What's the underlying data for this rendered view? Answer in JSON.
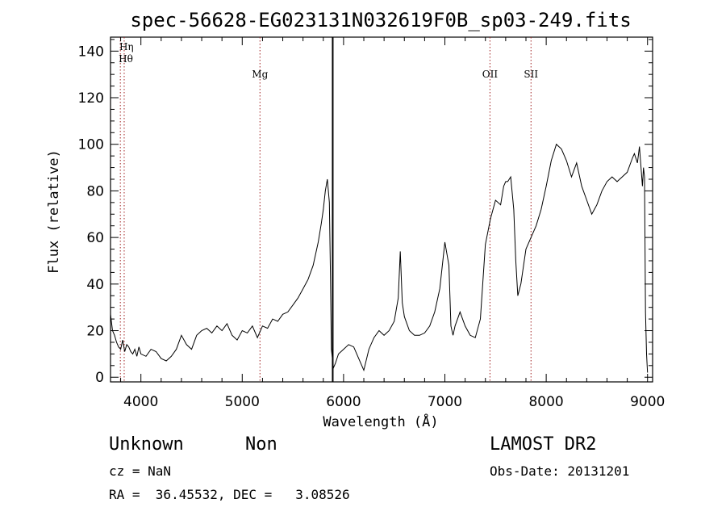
{
  "chart_data": {
    "type": "line",
    "title": "spec-56628-EG023131N032619F0B_sp03-249.fits",
    "xlabel": "Wavelength (Å)",
    "ylabel": "Flux (relative)",
    "xlim": [
      3700,
      9050
    ],
    "ylim": [
      -2,
      146
    ],
    "x_ticks": [
      4000,
      5000,
      6000,
      7000,
      8000,
      9000
    ],
    "y_ticks": [
      0,
      20,
      40,
      60,
      80,
      100,
      120,
      140
    ],
    "grid": false,
    "series": [
      {
        "x": [
          3700,
          3720,
          3740,
          3760,
          3780,
          3800,
          3820,
          3840,
          3860,
          3880,
          3900,
          3920,
          3940,
          3960,
          3980,
          4000,
          4050,
          4100,
          4150,
          4200,
          4250,
          4300,
          4350,
          4400,
          4450,
          4500,
          4550,
          4600,
          4650,
          4700,
          4750,
          4800,
          4850,
          4900,
          4950,
          5000,
          5050,
          5100,
          5150,
          5200,
          5250,
          5300,
          5350,
          5400,
          5450,
          5500,
          5550,
          5600,
          5650,
          5700,
          5750,
          5780,
          5800,
          5820,
          5840,
          5860,
          5870,
          5880,
          5890,
          5900,
          5920,
          5950,
          6000,
          6050,
          6100,
          6150,
          6200,
          6250,
          6300,
          6350,
          6400,
          6450,
          6500,
          6540,
          6560,
          6580,
          6600,
          6650,
          6700,
          6750,
          6800,
          6850,
          6900,
          6950,
          7000,
          7040,
          7060,
          7080,
          7100,
          7150,
          7200,
          7250,
          7300,
          7350,
          7400,
          7450,
          7500,
          7550,
          7580,
          7600,
          7620,
          7650,
          7680,
          7700,
          7720,
          7750,
          7800,
          7850,
          7900,
          7950,
          8000,
          8050,
          8100,
          8150,
          8200,
          8250,
          8300,
          8330,
          8350,
          8400,
          8450,
          8500,
          8550,
          8600,
          8650,
          8700,
          8750,
          8800,
          8850,
          8870,
          8900,
          8920,
          8950,
          8960,
          8970,
          8980,
          8990,
          9000
        ],
        "y": [
          27,
          20,
          18,
          15,
          13,
          12,
          16,
          11,
          14,
          13,
          11,
          10,
          12,
          9,
          13,
          10,
          9,
          12,
          11,
          8,
          7,
          9,
          12,
          18,
          14,
          12,
          18,
          20,
          21,
          19,
          22,
          20,
          23,
          18,
          16,
          20,
          19,
          22,
          17,
          22,
          21,
          25,
          24,
          27,
          28,
          31,
          34,
          38,
          42,
          48,
          58,
          66,
          72,
          80,
          85,
          75,
          45,
          12,
          8,
          4,
          6,
          10,
          12,
          14,
          13,
          8,
          3,
          12,
          17,
          20,
          18,
          20,
          24,
          34,
          54,
          32,
          26,
          20,
          18,
          18,
          19,
          22,
          28,
          38,
          58,
          48,
          22,
          18,
          22,
          28,
          22,
          18,
          17,
          25,
          57,
          68,
          76,
          74,
          82,
          84,
          84,
          86,
          72,
          50,
          35,
          40,
          55,
          60,
          65,
          72,
          82,
          93,
          100,
          98,
          93,
          86,
          92,
          86,
          82,
          76,
          70,
          74,
          80,
          84,
          86,
          84,
          86,
          88,
          94,
          96,
          92,
          99,
          82,
          90,
          86,
          28,
          10,
          2
        ]
      }
    ],
    "reference_lines": [
      {
        "label": "Hη",
        "x": 3835
      },
      {
        "label": "Hθ",
        "x": 3797
      },
      {
        "label": "Mg",
        "x": 5175
      },
      {
        "label": "OII",
        "x": 7445
      },
      {
        "label": "SII",
        "x": 7850
      }
    ],
    "marker_line_x": 5893
  },
  "info": {
    "class_text": "Unknown",
    "subclass_text": "Non",
    "survey": "LAMOST DR2",
    "cz": "cz = NaN",
    "obs_date": "Obs-Date: 20131201",
    "coords": "RA =  36.45532, DEC =   3.08526"
  }
}
